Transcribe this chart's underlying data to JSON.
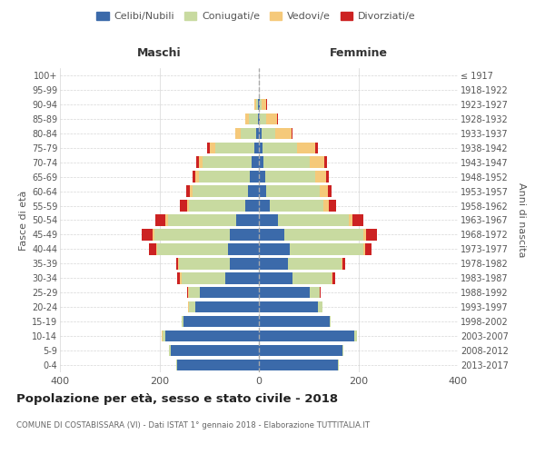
{
  "age_groups": [
    "0-4",
    "5-9",
    "10-14",
    "15-19",
    "20-24",
    "25-29",
    "30-34",
    "35-39",
    "40-44",
    "45-49",
    "50-54",
    "55-59",
    "60-64",
    "65-69",
    "70-74",
    "75-79",
    "80-84",
    "85-89",
    "90-94",
    "95-99",
    "100+"
  ],
  "birth_years": [
    "2013-2017",
    "2008-2012",
    "2003-2007",
    "1998-2002",
    "1993-1997",
    "1988-1992",
    "1983-1987",
    "1978-1982",
    "1973-1977",
    "1968-1972",
    "1963-1967",
    "1958-1962",
    "1953-1957",
    "1948-1952",
    "1943-1947",
    "1938-1942",
    "1933-1937",
    "1928-1932",
    "1923-1927",
    "1918-1922",
    "≤ 1917"
  ],
  "colors": {
    "celibi": "#3b6aaa",
    "coniugati": "#c8daa0",
    "vedovi": "#f5c97a",
    "divorziati": "#cc2222"
  },
  "maschi": {
    "celibi": [
      165,
      178,
      188,
      152,
      128,
      118,
      68,
      58,
      62,
      58,
      45,
      28,
      22,
      18,
      15,
      10,
      5,
      2,
      1,
      0,
      0
    ],
    "coniugati": [
      2,
      3,
      6,
      3,
      12,
      22,
      88,
      102,
      142,
      152,
      138,
      112,
      112,
      102,
      98,
      78,
      32,
      18,
      5,
      0,
      0
    ],
    "vedovi": [
      0,
      0,
      2,
      0,
      2,
      2,
      2,
      2,
      3,
      3,
      5,
      5,
      5,
      8,
      8,
      10,
      10,
      8,
      3,
      0,
      0
    ],
    "divorziati": [
      0,
      0,
      0,
      0,
      0,
      2,
      6,
      5,
      14,
      22,
      20,
      14,
      8,
      5,
      5,
      6,
      0,
      0,
      0,
      0,
      0
    ]
  },
  "femmine": {
    "celibi": [
      158,
      168,
      192,
      142,
      118,
      102,
      68,
      58,
      62,
      52,
      38,
      22,
      15,
      12,
      10,
      8,
      5,
      2,
      1,
      0,
      0
    ],
    "coniugati": [
      2,
      2,
      6,
      2,
      10,
      20,
      78,
      108,
      148,
      158,
      142,
      108,
      108,
      102,
      92,
      68,
      28,
      12,
      4,
      0,
      0
    ],
    "vedovi": [
      0,
      0,
      0,
      0,
      0,
      1,
      2,
      2,
      3,
      5,
      8,
      10,
      15,
      22,
      30,
      38,
      32,
      22,
      10,
      0,
      0
    ],
    "divorziati": [
      0,
      0,
      0,
      0,
      0,
      2,
      6,
      5,
      14,
      22,
      22,
      16,
      8,
      5,
      5,
      5,
      3,
      2,
      2,
      0,
      0
    ]
  },
  "xlim": 400,
  "title": "Popolazione per età, sesso e stato civile - 2018",
  "subtitle": "COMUNE DI COSTABISSARA (VI) - Dati ISTAT 1° gennaio 2018 - Elaborazione TUTTITALIA.IT",
  "ylabel_left": "Fasce di età",
  "ylabel_right": "Anni di nascita",
  "xlabel_maschi": "Maschi",
  "xlabel_femmine": "Femmine",
  "legend_labels": [
    "Celibi/Nubili",
    "Coniugati/e",
    "Vedovi/e",
    "Divorziati/e"
  ],
  "background_color": "#ffffff",
  "grid_color": "#cccccc"
}
